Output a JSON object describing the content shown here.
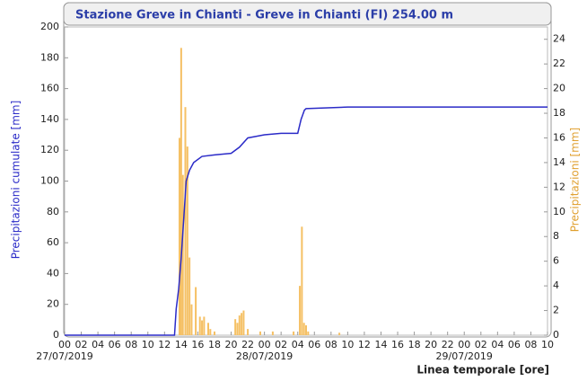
{
  "chart_data": {
    "type": "combo",
    "title": "Stazione Greve in Chianti - Greve in Chianti (FI) 254.00 m",
    "ylabel": "Precipitazioni cumulate [mm]",
    "y2label": "Precipitazioni [mm]",
    "xlabel": "Linea temporale [ore]",
    "xlim": [
      0,
      58
    ],
    "xticks": [
      {
        "value": 0,
        "label": "00"
      },
      {
        "value": 2,
        "label": "02"
      },
      {
        "value": 4,
        "label": "04"
      },
      {
        "value": 6,
        "label": "06"
      },
      {
        "value": 8,
        "label": "08"
      },
      {
        "value": 10,
        "label": "10"
      },
      {
        "value": 12,
        "label": "12"
      },
      {
        "value": 14,
        "label": "14"
      },
      {
        "value": 16,
        "label": "16"
      },
      {
        "value": 18,
        "label": "18"
      },
      {
        "value": 20,
        "label": "20"
      },
      {
        "value": 22,
        "label": "22"
      },
      {
        "value": 24,
        "label": "00"
      },
      {
        "value": 26,
        "label": "02"
      },
      {
        "value": 28,
        "label": "04"
      },
      {
        "value": 30,
        "label": "06"
      },
      {
        "value": 32,
        "label": "08"
      },
      {
        "value": 34,
        "label": "10"
      },
      {
        "value": 36,
        "label": "12"
      },
      {
        "value": 38,
        "label": "14"
      },
      {
        "value": 40,
        "label": "16"
      },
      {
        "value": 42,
        "label": "18"
      },
      {
        "value": 44,
        "label": "20"
      },
      {
        "value": 46,
        "label": "22"
      },
      {
        "value": 48,
        "label": "00"
      },
      {
        "value": 50,
        "label": "02"
      },
      {
        "value": 52,
        "label": "04"
      },
      {
        "value": 54,
        "label": "06"
      },
      {
        "value": 56,
        "label": "08"
      },
      {
        "value": 58,
        "label": "10"
      }
    ],
    "xdates": [
      {
        "value": 0,
        "label": "27/07/2019"
      },
      {
        "value": 24,
        "label": "28/07/2019"
      },
      {
        "value": 48,
        "label": "29/07/2019"
      }
    ],
    "ylim": [
      0,
      200
    ],
    "yticks": [
      0,
      20,
      40,
      60,
      80,
      100,
      120,
      140,
      160,
      180,
      200
    ],
    "y2lim": [
      0,
      25
    ],
    "y2ticks": [
      0,
      2,
      4,
      6,
      8,
      10,
      12,
      14,
      16,
      18,
      20,
      22,
      24
    ],
    "grid": false,
    "series": [
      {
        "type": "line",
        "color": "#2b2bc8",
        "x": [
          0,
          13.2,
          13.4,
          13.7,
          14,
          14.3,
          14.6,
          15,
          15.5,
          16.5,
          18,
          20,
          21,
          22,
          23,
          24,
          26,
          28,
          28.4,
          28.8,
          29,
          34,
          58
        ],
        "values": [
          0,
          0,
          17,
          30,
          50,
          75,
          100,
          107,
          112,
          116,
          117,
          118,
          122,
          128,
          129,
          130,
          131,
          131,
          140,
          146,
          147,
          148,
          148
        ]
      },
      {
        "type": "bar",
        "axis": "y2",
        "color": "#f5c064",
        "x": [
          13.8,
          14,
          14.2,
          14.5,
          14.75,
          15,
          15.25,
          15.75,
          16.25,
          16.5,
          16.75,
          17.25,
          17.5,
          18,
          20.5,
          20.75,
          21,
          21.25,
          21.5,
          22,
          23.5,
          25,
          27.5,
          28.25,
          28.5,
          28.75,
          29,
          29.25,
          33
        ],
        "values": [
          16,
          23.3,
          13,
          18.5,
          15.3,
          6.3,
          2.5,
          3.9,
          1.5,
          1.2,
          1.5,
          1,
          0.5,
          0.3,
          1.3,
          1,
          1.6,
          1.8,
          2,
          0.5,
          0.3,
          0.3,
          0.3,
          4,
          8.8,
          1,
          0.8,
          0.3,
          0.2
        ]
      }
    ]
  }
}
